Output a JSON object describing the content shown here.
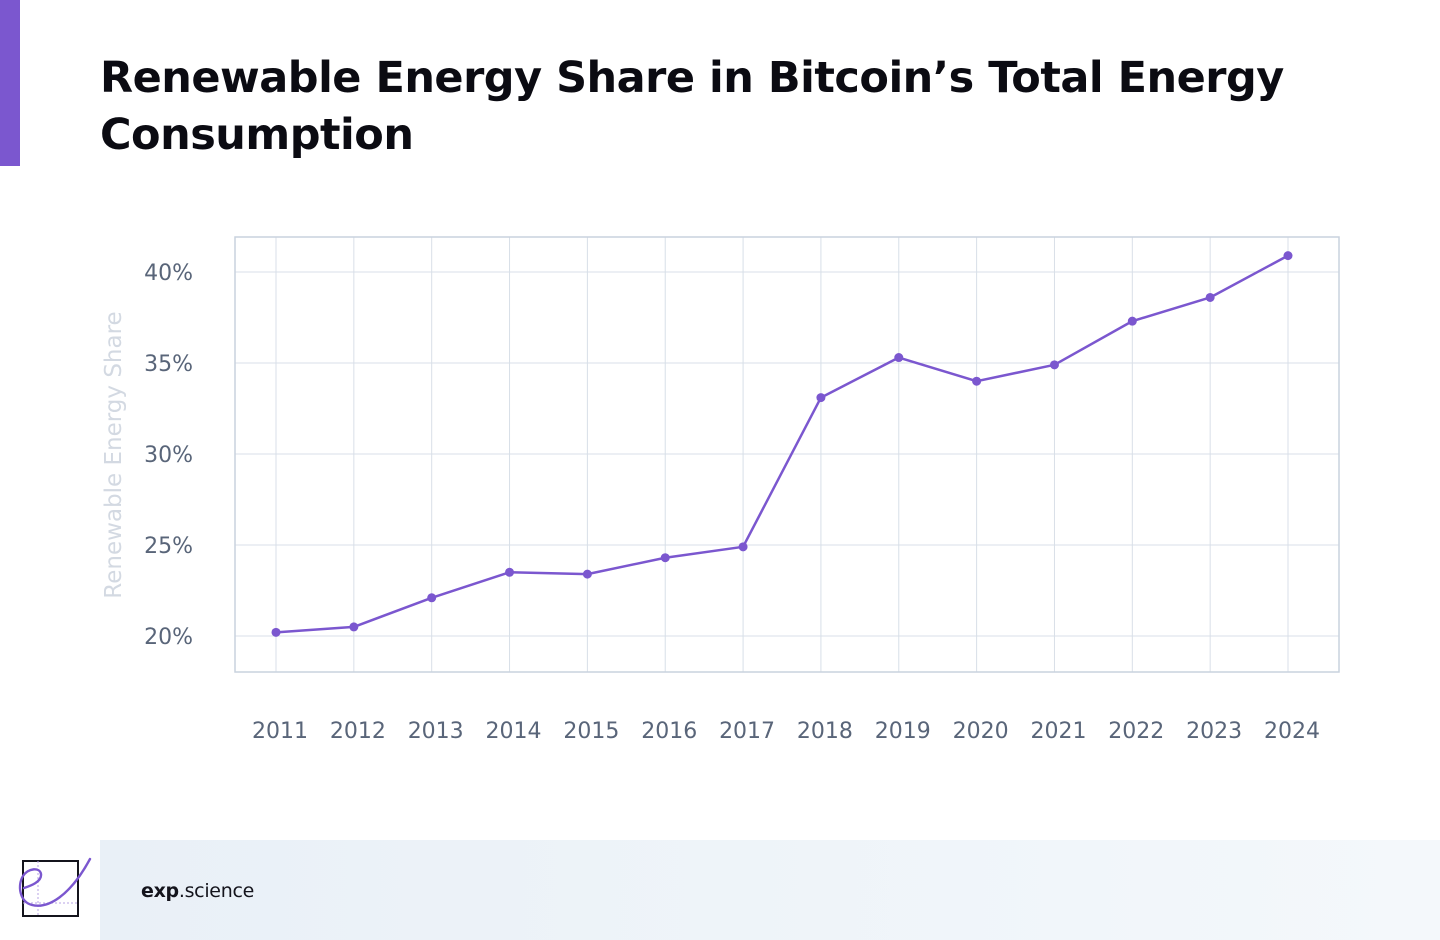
{
  "header": {
    "title": "Renewable Energy Share in Bitcoin’s Total Energy Consumption"
  },
  "colors": {
    "accent": "#7b57cf",
    "line": "#7b57cf",
    "grid": "#d8dfe8",
    "tick_text": "#596579",
    "ylabel_text": "#d3d9e2"
  },
  "chart_data": {
    "type": "line",
    "title": "Renewable Energy Share in Bitcoin’s Total Energy Consumption",
    "xlabel": "",
    "ylabel": "Renewable Energy Share",
    "ylim": [
      18,
      42
    ],
    "yticks": [
      20,
      25,
      30,
      35,
      40
    ],
    "ytick_labels": [
      "20%",
      "25%",
      "30%",
      "35%",
      "40%"
    ],
    "grid": true,
    "categories": [
      "2011",
      "2012",
      "2013",
      "2014",
      "2015",
      "2016",
      "2017",
      "2018",
      "2019",
      "2020",
      "2021",
      "2022",
      "2023",
      "2024"
    ],
    "series": [
      {
        "values": [
          20.2,
          20.5,
          22.1,
          23.5,
          23.4,
          24.3,
          24.9,
          33.1,
          35.3,
          34.0,
          34.9,
          37.3,
          38.6,
          40.9
        ]
      }
    ]
  },
  "footer": {
    "brand_bold": "exp",
    "brand_rest": ".science",
    "logo_icon": "exp-science-logo-icon"
  }
}
